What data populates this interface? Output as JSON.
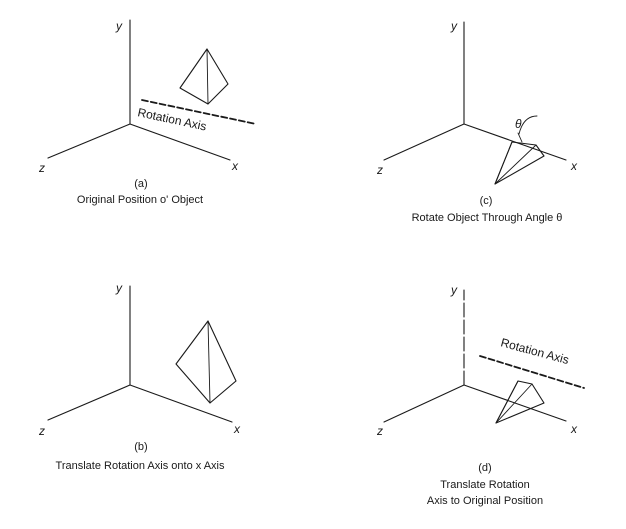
{
  "axes": {
    "x": "x",
    "y": "y",
    "z": "z"
  },
  "rotation_axis_label": "Rotation Axis",
  "theta": "θ",
  "panels": {
    "a": {
      "letter": "(a)",
      "caption": "Original Position o' Object"
    },
    "b": {
      "letter": "(b)",
      "caption": "Translate Rotation Axis onto x Axis"
    },
    "c": {
      "letter": "(c)",
      "caption": "Rotate Object Through Angle θ"
    },
    "d": {
      "letter": "(d)",
      "caption_line1": "Translate Rotation",
      "caption_line2": "Axis to Original Position"
    }
  }
}
